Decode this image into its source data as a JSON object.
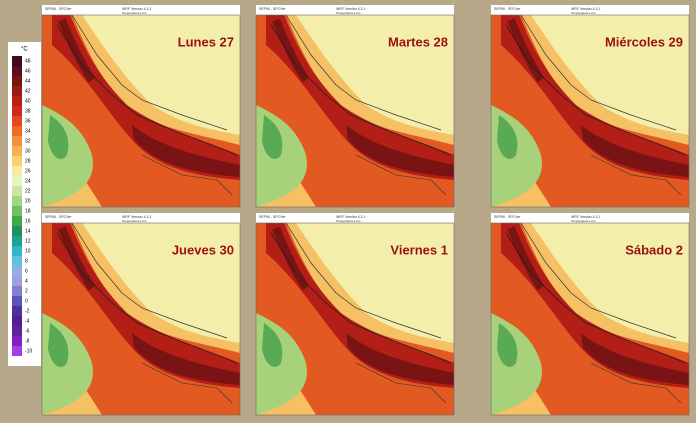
{
  "legend": {
    "unit": "°C",
    "ticks": [
      48,
      46,
      44,
      42,
      40,
      38,
      36,
      34,
      32,
      30,
      28,
      26,
      24,
      22,
      20,
      18,
      16,
      14,
      12,
      10,
      8,
      6,
      4,
      2,
      0,
      -2,
      -4,
      -6,
      -8,
      -10
    ],
    "colors": [
      "#3d0a1e",
      "#5a0f1e",
      "#7a1414",
      "#9a1a14",
      "#b51f14",
      "#d0281a",
      "#e4461e",
      "#ef6a2a",
      "#f5903a",
      "#f8b050",
      "#f8d070",
      "#f4eca0",
      "#e8f4c0",
      "#c8e8a0",
      "#a0d880",
      "#70c060",
      "#40a848",
      "#209060",
      "#20a090",
      "#30b8c8",
      "#60c0e0",
      "#90b0e0",
      "#a0a0e0",
      "#8080d0",
      "#6050b8",
      "#5030a0",
      "#502090",
      "#6020a0",
      "#8020c0",
      "#a040e0"
    ]
  },
  "panels": [
    {
      "title": "Lunes 27",
      "source": "SEPMI - SPCVer",
      "model": "WRF Versión 4.3.1",
      "variable": "Temperatura a 2m"
    },
    {
      "title": "Martes 28",
      "source": "SEPMI - SPCVer",
      "model": "WRF Versión 4.3.1",
      "variable": "Temperatura a 2m"
    },
    {
      "title": "Miércoles 29",
      "source": "SEPMI - SPCVer",
      "model": "WRF Versión 4.3.1",
      "variable": "Temperatura a 2m"
    },
    {
      "title": "Jueves 30",
      "source": "SEPMI - SPCVer",
      "model": "WRF Versión 4.3.1",
      "variable": "Temperatura a 2m"
    },
    {
      "title": "Viernes 1",
      "source": "SEPMI - SPCVer",
      "model": "WRF Versión 4.3.1",
      "variable": "Temperatura a 2m"
    },
    {
      "title": "Sábado 2",
      "source": "SEPMI - SPCVer",
      "model": "WRF Versión 4.3.1",
      "variable": "Temperatura a 2m"
    }
  ]
}
